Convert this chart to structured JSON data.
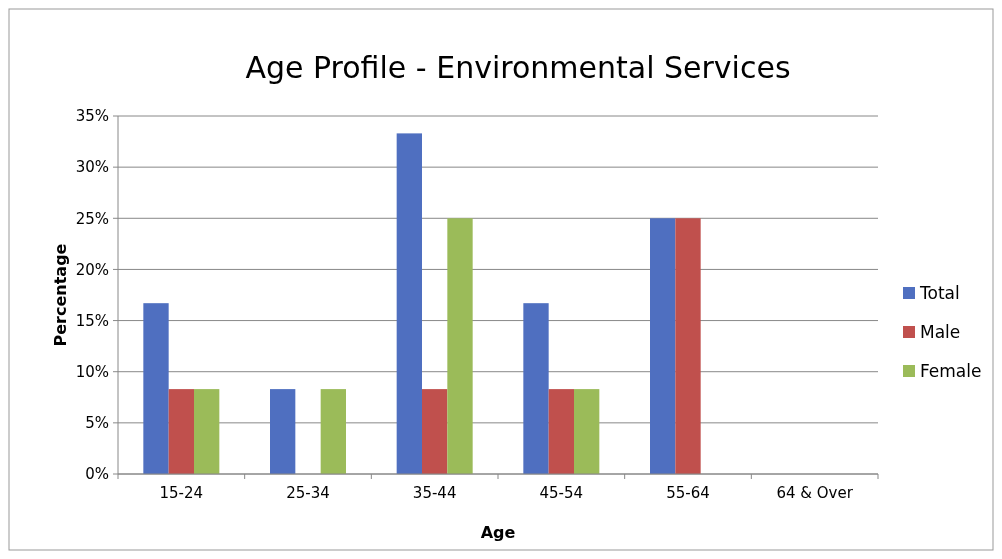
{
  "chart_data": {
    "type": "bar",
    "title": "Age Profile - Environmental Services",
    "xlabel": "Age",
    "ylabel": "Percentage",
    "categories": [
      "15-24",
      "25-34",
      "35-44",
      "45-54",
      "55-64",
      "64 & Over"
    ],
    "series": [
      {
        "name": "Total",
        "color": "#4f6fc0",
        "values": [
          16.7,
          8.3,
          33.3,
          16.7,
          25,
          0
        ]
      },
      {
        "name": "Male",
        "color": "#c0504d",
        "values": [
          8.3,
          0,
          8.3,
          8.3,
          25,
          0
        ]
      },
      {
        "name": "Female",
        "color": "#9bbb59",
        "values": [
          8.3,
          8.3,
          25,
          8.3,
          0,
          0
        ]
      }
    ],
    "ylim": [
      0,
      35
    ],
    "yticks": [
      {
        "value": 0,
        "label": "0%"
      },
      {
        "value": 5,
        "label": "5%"
      },
      {
        "value": 10,
        "label": "10%"
      },
      {
        "value": 15,
        "label": "15%"
      },
      {
        "value": 20,
        "label": "20%"
      },
      {
        "value": 25,
        "label": "25%"
      },
      {
        "value": 30,
        "label": "30%"
      },
      {
        "value": 35,
        "label": "35%"
      }
    ],
    "grid": "y",
    "legend": "right"
  }
}
